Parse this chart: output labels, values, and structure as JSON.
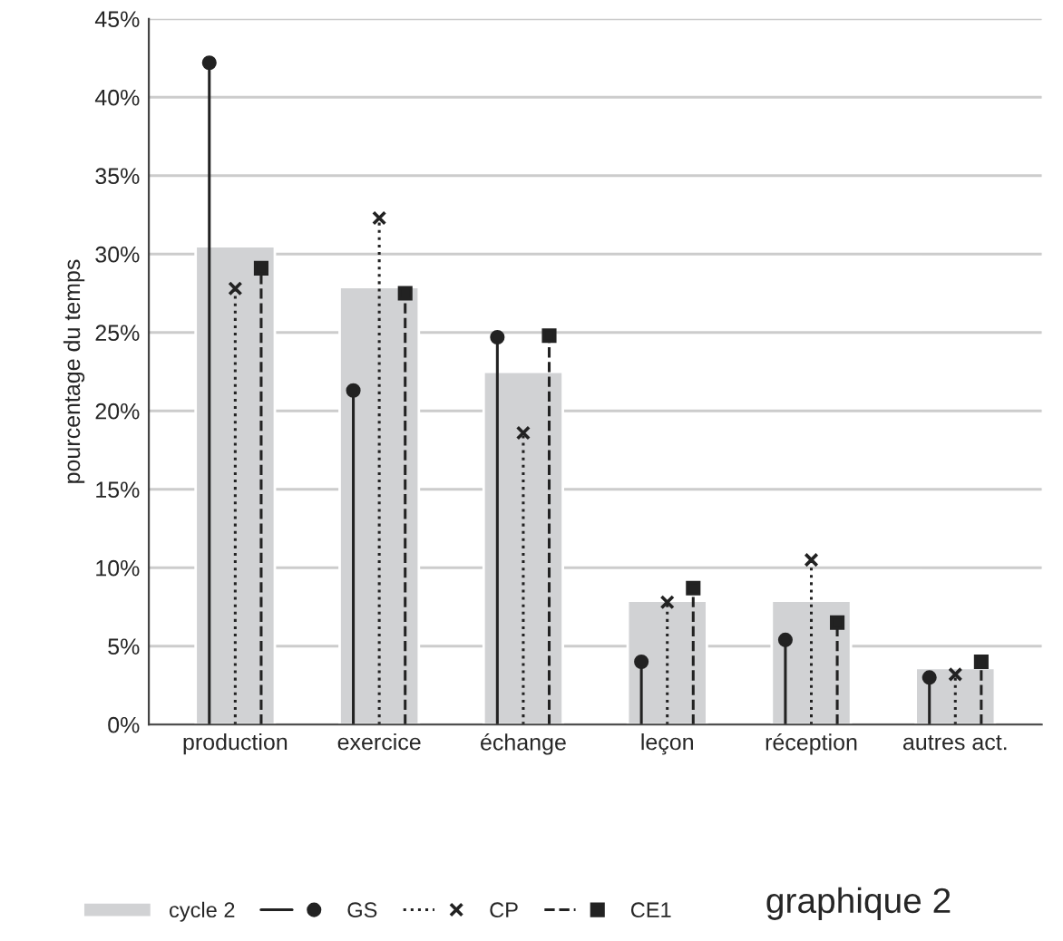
{
  "chart_data": {
    "type": "bar",
    "categories": [
      "production",
      "exercice",
      "échange",
      "leçon",
      "réception",
      "autres act."
    ],
    "ylabel": "pourcentage du temps",
    "ylim": [
      0,
      45
    ],
    "yticks": [
      {
        "value": 0,
        "label": "0%"
      },
      {
        "value": 5,
        "label": "5%"
      },
      {
        "value": 10,
        "label": "10%"
      },
      {
        "value": 15,
        "label": "15%"
      },
      {
        "value": 20,
        "label": "20%"
      },
      {
        "value": 25,
        "label": "25%"
      },
      {
        "value": 30,
        "label": "30%"
      },
      {
        "value": 35,
        "label": "35%"
      },
      {
        "value": 40,
        "label": "40%"
      },
      {
        "value": 45,
        "label": "45%"
      }
    ],
    "grid": "y",
    "legend": "bottom",
    "annotations": [
      "graphique 2"
    ],
    "series": [
      {
        "name": "cycle 2",
        "type": "bar",
        "color": "#d1d2d4",
        "values": [
          30.5,
          27.9,
          22.5,
          7.9,
          7.9,
          3.6
        ]
      },
      {
        "name": "GS",
        "type": "lollipop",
        "color": "#222222",
        "marker": "circle",
        "line_style": "solid",
        "values": [
          42.2,
          21.3,
          24.7,
          4.0,
          5.4,
          3.0
        ]
      },
      {
        "name": "CP",
        "type": "lollipop",
        "color": "#222222",
        "marker": "cross",
        "line_style": "dotted",
        "values": [
          27.8,
          32.3,
          18.6,
          7.8,
          10.5,
          3.2
        ]
      },
      {
        "name": "CE1",
        "type": "lollipop",
        "color": "#222222",
        "marker": "square",
        "line_style": "dashed",
        "values": [
          29.1,
          27.5,
          24.8,
          8.7,
          6.5,
          4.0
        ]
      }
    ]
  }
}
